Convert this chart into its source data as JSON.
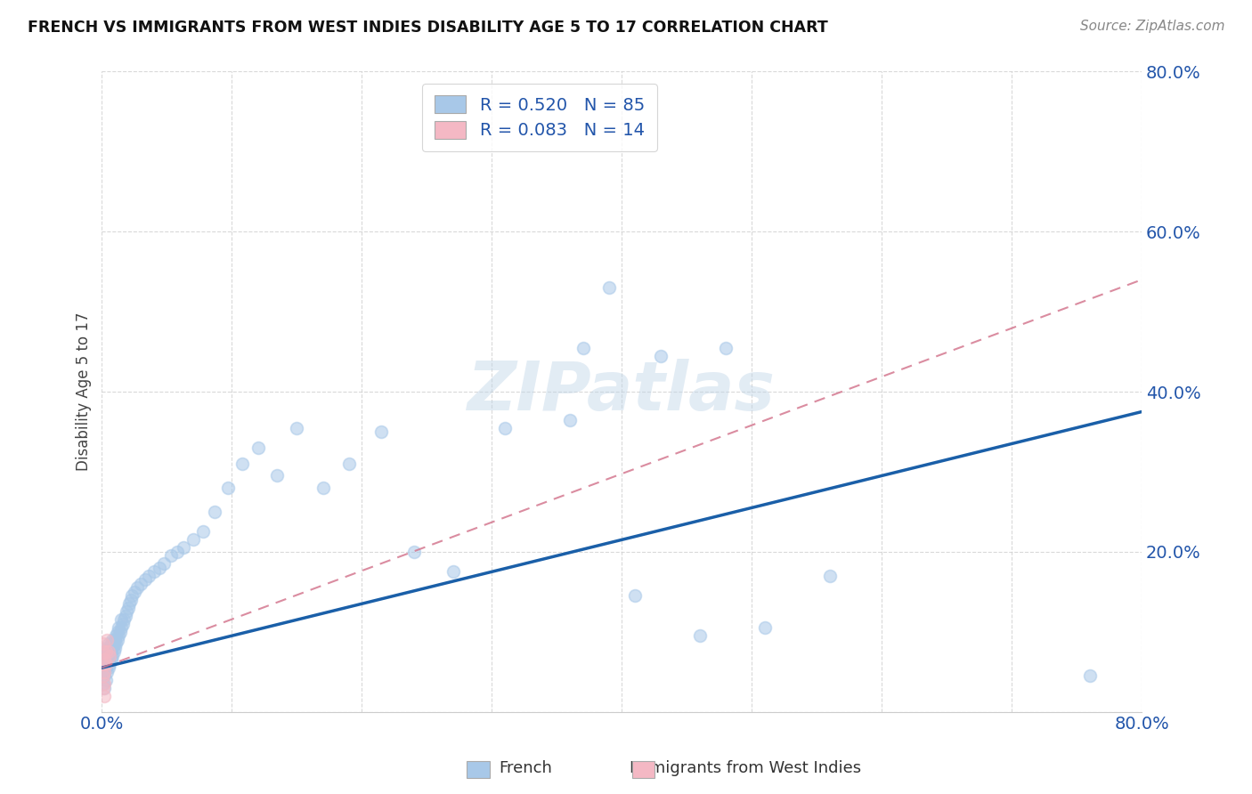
{
  "title": "FRENCH VS IMMIGRANTS FROM WEST INDIES DISABILITY AGE 5 TO 17 CORRELATION CHART",
  "source": "Source: ZipAtlas.com",
  "ylabel": "Disability Age 5 to 17",
  "xlim": [
    0.0,
    0.8
  ],
  "ylim": [
    0.0,
    0.8
  ],
  "french_color": "#a8c8e8",
  "immigrants_color": "#f4b8c4",
  "french_line_color": "#1a5fa8",
  "immigrants_line_color": "#d47890",
  "background_color": "#ffffff",
  "grid_color": "#d0d0d0",
  "legend_R1": "R = 0.520",
  "legend_N1": "N = 85",
  "legend_R2": "R = 0.083",
  "legend_N2": "N = 14",
  "watermark": "ZIPatlas",
  "french_x": [
    0.001,
    0.001,
    0.001,
    0.002,
    0.002,
    0.002,
    0.002,
    0.002,
    0.003,
    0.003,
    0.003,
    0.003,
    0.004,
    0.004,
    0.004,
    0.004,
    0.005,
    0.005,
    0.005,
    0.005,
    0.006,
    0.006,
    0.006,
    0.007,
    0.007,
    0.007,
    0.008,
    0.008,
    0.008,
    0.009,
    0.009,
    0.01,
    0.01,
    0.011,
    0.011,
    0.012,
    0.012,
    0.013,
    0.013,
    0.014,
    0.015,
    0.015,
    0.016,
    0.017,
    0.018,
    0.019,
    0.02,
    0.021,
    0.022,
    0.023,
    0.025,
    0.027,
    0.03,
    0.033,
    0.036,
    0.04,
    0.044,
    0.048,
    0.053,
    0.058,
    0.063,
    0.07,
    0.078,
    0.087,
    0.097,
    0.108,
    0.12,
    0.135,
    0.15,
    0.17,
    0.19,
    0.215,
    0.24,
    0.27,
    0.31,
    0.36,
    0.41,
    0.46,
    0.51,
    0.56,
    0.37,
    0.39,
    0.43,
    0.48,
    0.76
  ],
  "french_y": [
    0.035,
    0.05,
    0.06,
    0.03,
    0.045,
    0.055,
    0.065,
    0.07,
    0.04,
    0.055,
    0.065,
    0.075,
    0.05,
    0.06,
    0.07,
    0.08,
    0.055,
    0.065,
    0.075,
    0.085,
    0.06,
    0.07,
    0.08,
    0.065,
    0.075,
    0.085,
    0.07,
    0.08,
    0.09,
    0.075,
    0.085,
    0.08,
    0.09,
    0.085,
    0.095,
    0.09,
    0.1,
    0.095,
    0.105,
    0.1,
    0.105,
    0.115,
    0.11,
    0.115,
    0.12,
    0.125,
    0.13,
    0.135,
    0.14,
    0.145,
    0.15,
    0.155,
    0.16,
    0.165,
    0.17,
    0.175,
    0.18,
    0.185,
    0.195,
    0.2,
    0.205,
    0.215,
    0.225,
    0.25,
    0.28,
    0.31,
    0.33,
    0.295,
    0.355,
    0.28,
    0.31,
    0.35,
    0.2,
    0.175,
    0.355,
    0.365,
    0.145,
    0.095,
    0.105,
    0.17,
    0.455,
    0.53,
    0.445,
    0.455,
    0.045
  ],
  "immigrants_x": [
    0.001,
    0.001,
    0.001,
    0.001,
    0.001,
    0.002,
    0.002,
    0.002,
    0.002,
    0.003,
    0.003,
    0.004,
    0.005,
    0.006
  ],
  "immigrants_y": [
    0.03,
    0.045,
    0.06,
    0.075,
    0.085,
    0.02,
    0.035,
    0.05,
    0.065,
    0.06,
    0.075,
    0.09,
    0.075,
    0.07
  ],
  "french_line_x": [
    0.0,
    0.8
  ],
  "french_line_y": [
    0.055,
    0.375
  ],
  "immigrants_line_x": [
    0.0,
    0.8
  ],
  "immigrants_line_y": [
    0.055,
    0.54
  ]
}
